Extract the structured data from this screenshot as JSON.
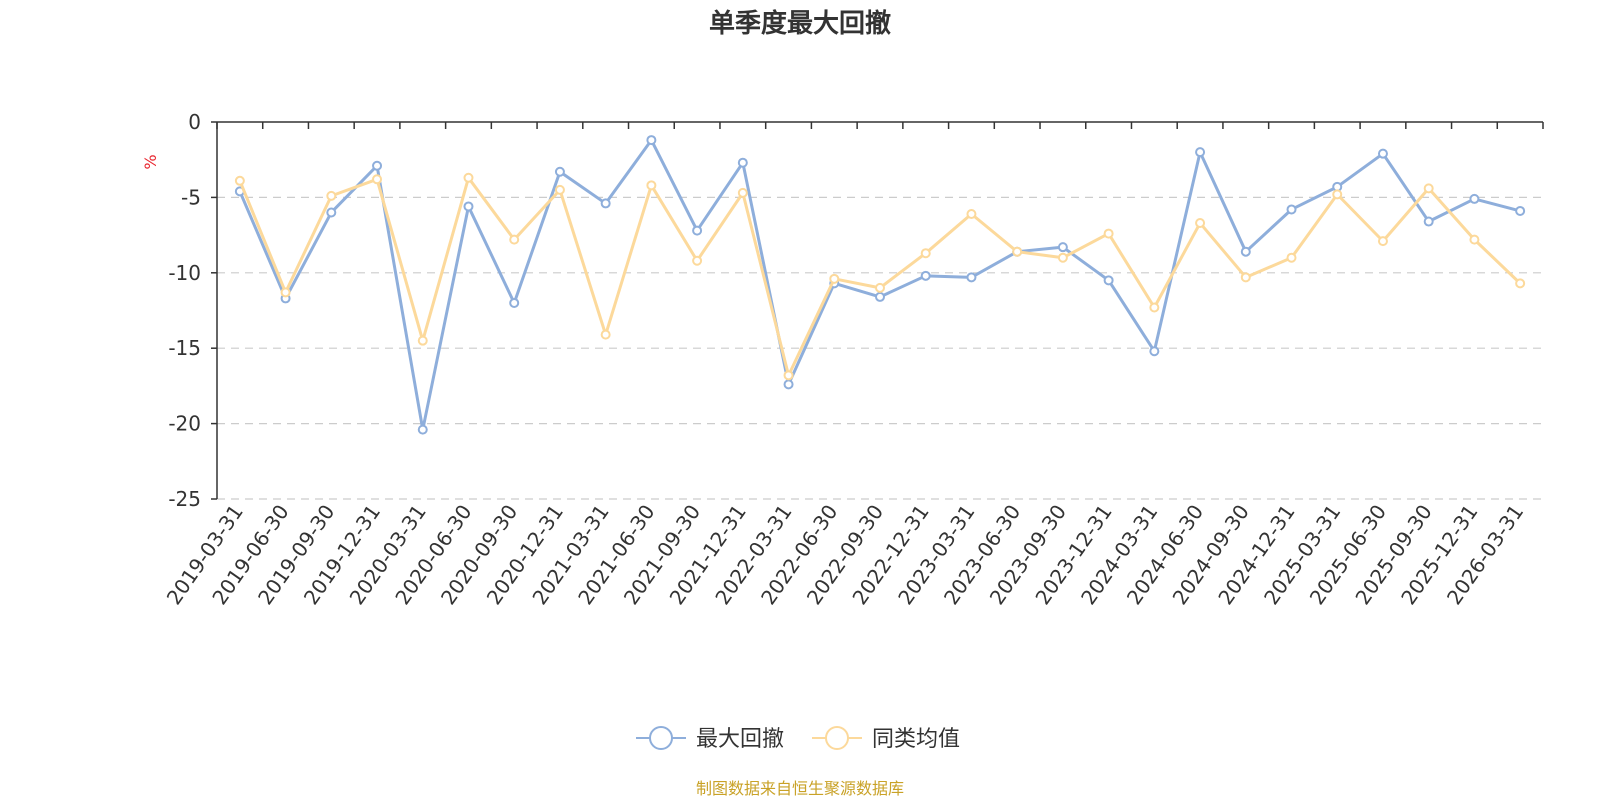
{
  "chart_data": {
    "type": "line",
    "title": "单季度最大回撤",
    "ylabel": "%",
    "ylim": [
      -25,
      0
    ],
    "yticks": [
      0,
      -5,
      -10,
      -15,
      -20,
      -25
    ],
    "grid": "horizontal-dashed",
    "legend_position": "bottom-center",
    "categories": [
      "2019-03-31",
      "2019-06-30",
      "2019-09-30",
      "2019-12-31",
      "2020-03-31",
      "2020-06-30",
      "2020-09-30",
      "2020-12-31",
      "2021-03-31",
      "2021-06-30",
      "2021-09-30",
      "2021-12-31",
      "2022-03-31",
      "2022-06-30",
      "2022-09-30",
      "2022-12-31",
      "2023-03-31",
      "2023-06-30",
      "2023-09-30",
      "2023-12-31",
      "2024-03-31",
      "2024-06-30",
      "2024-09-30",
      "2024-12-31",
      "2025-03-31",
      "2025-06-30",
      "2025-09-30",
      "2025-12-31",
      "2026-03-31"
    ],
    "series": [
      {
        "name": "最大回撤",
        "color": "#8eaedb",
        "values": [
          -4.6,
          -11.7,
          -6.0,
          -2.9,
          -20.4,
          -5.6,
          -12.0,
          -3.3,
          -5.4,
          -1.2,
          -7.2,
          -2.7,
          -17.4,
          -10.7,
          -11.6,
          -10.2,
          -10.3,
          -8.6,
          -8.3,
          -10.5,
          -15.2,
          -2.0,
          -8.6,
          -5.8,
          -4.3,
          -2.1,
          -6.6,
          -5.1,
          -5.9
        ]
      },
      {
        "name": "同类均值",
        "color": "#fcd99b",
        "values": [
          -3.9,
          -11.3,
          -4.9,
          -3.8,
          -14.5,
          -3.7,
          -7.8,
          -4.5,
          -14.1,
          -4.2,
          -9.2,
          -4.7,
          -16.8,
          -10.4,
          -11.0,
          -8.7,
          -6.1,
          -8.6,
          -9.0,
          -7.4,
          -12.3,
          -6.7,
          -10.3,
          -9.0,
          -4.8,
          -7.9,
          -4.4,
          -7.8,
          -10.7
        ]
      }
    ],
    "source": "制图数据来自恒生聚源数据库",
    "colors": {
      "axis": "#333333",
      "grid": "#cccccc",
      "unit": "#e8262f",
      "source": "#c9a227"
    }
  }
}
